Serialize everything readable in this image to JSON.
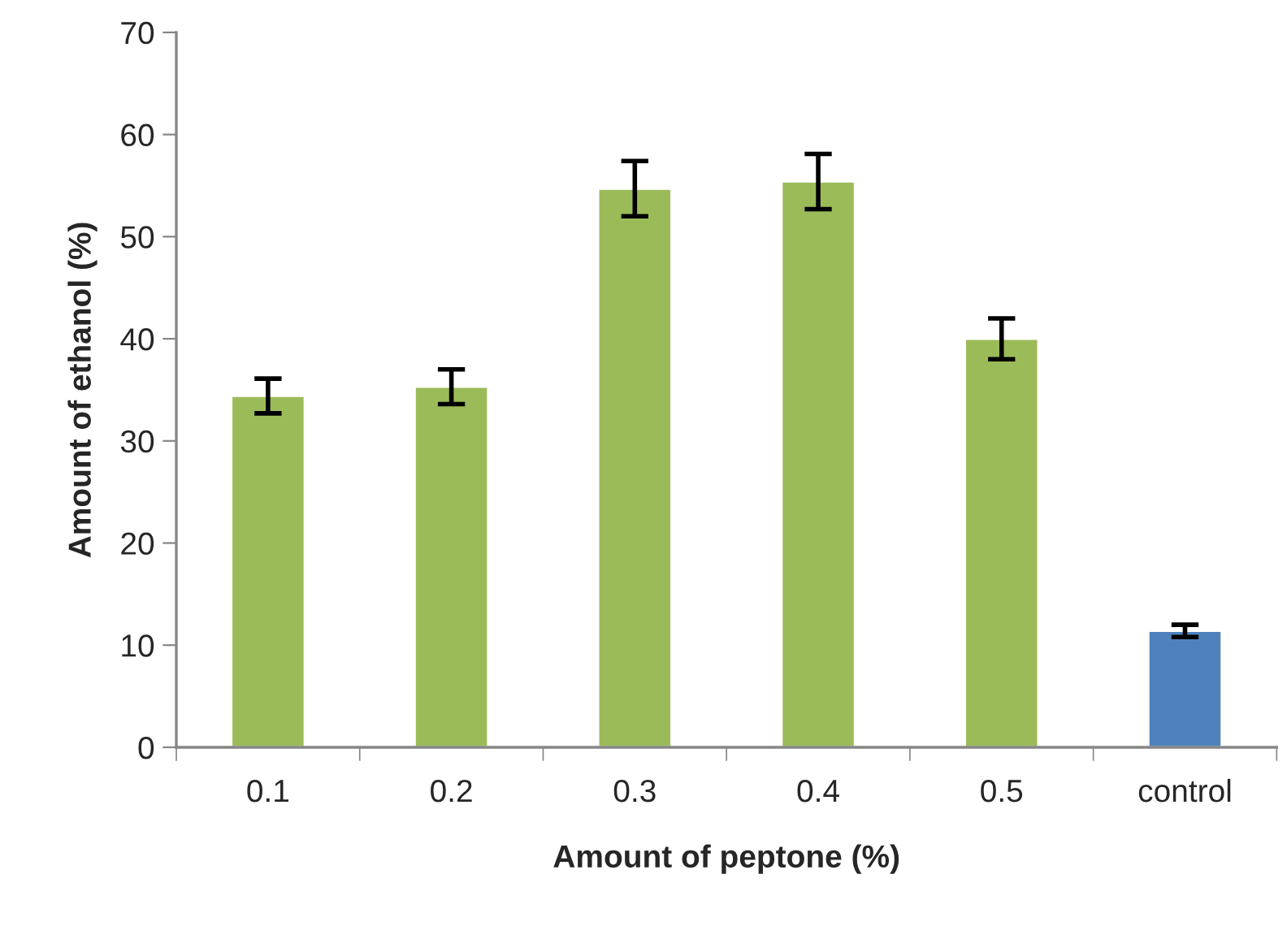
{
  "chart_data": {
    "type": "bar",
    "xlabel": "Amount of peptone (%)",
    "ylabel": "Amount of ethanol (%)",
    "categories": [
      "0.1",
      "0.2",
      "0.3",
      "0.4",
      "0.5",
      "control"
    ],
    "values": [
      34.4,
      35.3,
      54.7,
      55.4,
      40.0,
      11.4
    ],
    "errors": [
      1.7,
      1.7,
      2.7,
      2.7,
      2.0,
      0.6
    ],
    "colors": [
      "#9bbb59",
      "#9bbb59",
      "#9bbb59",
      "#9bbb59",
      "#9bbb59",
      "#4f81bd"
    ],
    "ylim": [
      0,
      70
    ],
    "yticks": [
      0,
      10,
      20,
      30,
      40,
      50,
      60,
      70
    ],
    "grid": false,
    "legend": false
  }
}
